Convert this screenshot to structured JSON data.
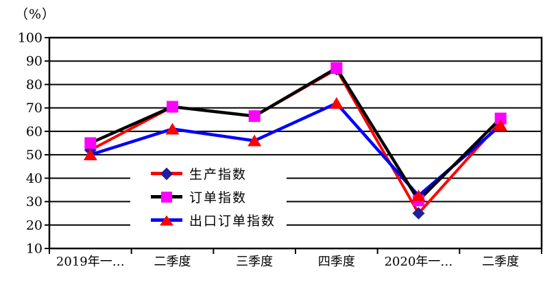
{
  "chart_data": {
    "type": "line",
    "title": "",
    "unit_label": "（%）",
    "xlabel": "",
    "ylabel": "（%）",
    "categories": [
      "2019年一…",
      "二季度",
      "三季度",
      "四季度",
      "2020年一…",
      "二季度"
    ],
    "series": [
      {
        "id": "production-index",
        "name": "生产指数",
        "line_color": "#FF0000",
        "line_width": 4,
        "marker": "diamond",
        "marker_color": "#1F1F9C",
        "values": [
          52,
          70.5,
          66.5,
          86.5,
          25,
          64
        ]
      },
      {
        "id": "order-index",
        "name": "订单指数",
        "line_color": "#000000",
        "line_width": 4.5,
        "marker": "square",
        "marker_color": "#FF00FF",
        "values": [
          55,
          70.5,
          66.5,
          87,
          30.5,
          65.5
        ]
      },
      {
        "id": "export-order-index",
        "name": "出口订单指数",
        "line_color": "#0000FF",
        "line_width": 4.5,
        "marker": "triangle",
        "marker_color": "#FF0000",
        "values": [
          50,
          61,
          56,
          72,
          32.5,
          62.5
        ]
      }
    ],
    "ylim": [
      10,
      100
    ],
    "yticks": [
      10,
      20,
      30,
      40,
      50,
      60,
      70,
      80,
      90,
      100
    ],
    "grid": "horizontal",
    "axis_color": "#000000",
    "legend_position": "inside-left-center",
    "legend_background": "#FFFFFF"
  }
}
